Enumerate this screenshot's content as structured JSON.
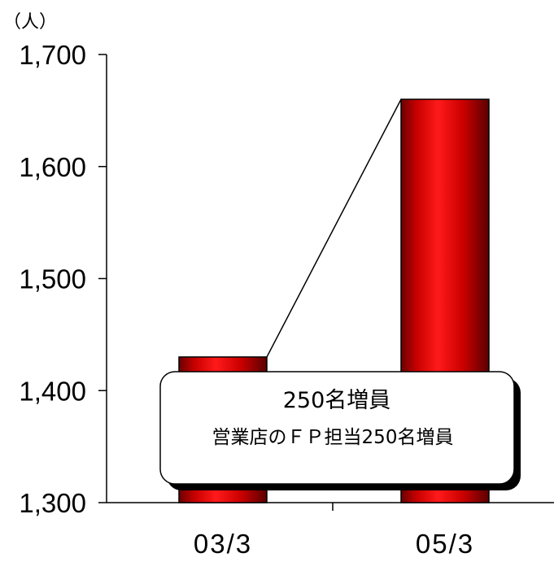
{
  "chart_data": {
    "type": "bar",
    "unit_label": "（人）",
    "categories": [
      "03/3",
      "05/3"
    ],
    "values": [
      1430,
      1660
    ],
    "ylim": [
      1300,
      1700
    ],
    "yticks": [
      1300,
      1400,
      1500,
      1600,
      1700
    ],
    "ytick_labels": [
      "1,300",
      "1,400",
      "1,500",
      "1,600",
      "1,700"
    ],
    "bar_color": "#cc0000",
    "grid": false,
    "annotation": {
      "title": "250名増員",
      "subtitle": "営業店のＦＰ担当250名増員"
    }
  }
}
